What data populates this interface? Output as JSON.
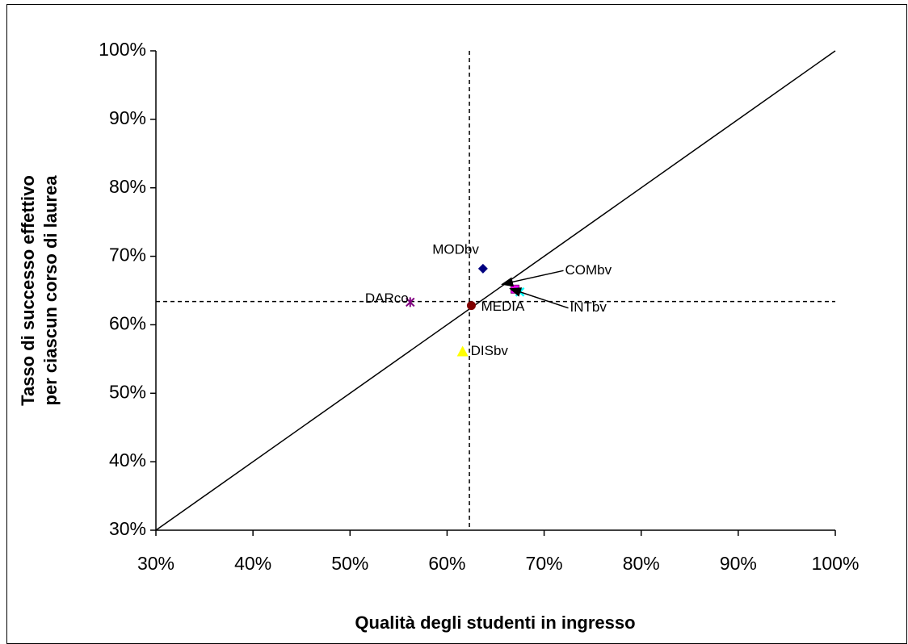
{
  "chart_data": {
    "type": "scatter",
    "xlabel": "Qualità degli studenti in ingresso",
    "ylabel": [
      "Tasso di successo effettivo",
      "per ciascun corso di laurea"
    ],
    "xlim": [
      30,
      100
    ],
    "ylim": [
      30,
      100
    ],
    "xticks": [
      {
        "value": 30,
        "label": "30%"
      },
      {
        "value": 40,
        "label": "40%"
      },
      {
        "value": 50,
        "label": "50%"
      },
      {
        "value": 60,
        "label": "60%"
      },
      {
        "value": 70,
        "label": "70%"
      },
      {
        "value": 80,
        "label": "80%"
      },
      {
        "value": 90,
        "label": "90%"
      },
      {
        "value": 100,
        "label": "100%"
      }
    ],
    "yticks": [
      {
        "value": 30,
        "label": "30%"
      },
      {
        "value": 40,
        "label": "40%"
      },
      {
        "value": 50,
        "label": "50%"
      },
      {
        "value": 60,
        "label": "60%"
      },
      {
        "value": 70,
        "label": "70%"
      },
      {
        "value": 80,
        "label": "80%"
      },
      {
        "value": 90,
        "label": "90%"
      },
      {
        "value": 100,
        "label": "100%"
      }
    ],
    "ref_x": 62.3,
    "ref_y": 63.4,
    "diagonal": true,
    "series": [
      {
        "name": "MODbv",
        "color": "#000080",
        "marker": "diamond",
        "x": [
          63.7
        ],
        "values": [
          68.2
        ]
      },
      {
        "name": "COMbv",
        "color": "#ff00ff",
        "marker": "square",
        "x": [
          67.0
        ],
        "values": [
          65.2
        ]
      },
      {
        "name": "INTbv",
        "color": "#00ffff",
        "marker": "x",
        "x": [
          67.5
        ],
        "values": [
          64.8
        ]
      },
      {
        "name": "DARco",
        "color": "#800080",
        "marker": "star",
        "x": [
          56.2
        ],
        "values": [
          63.3
        ]
      },
      {
        "name": "MEDIA",
        "color": "#800000",
        "marker": "circle",
        "x": [
          62.5
        ],
        "values": [
          62.8
        ]
      },
      {
        "name": "DISbv",
        "color": "#ffff00",
        "marker": "triangle",
        "x": [
          61.6
        ],
        "values": [
          56.1
        ]
      }
    ]
  }
}
